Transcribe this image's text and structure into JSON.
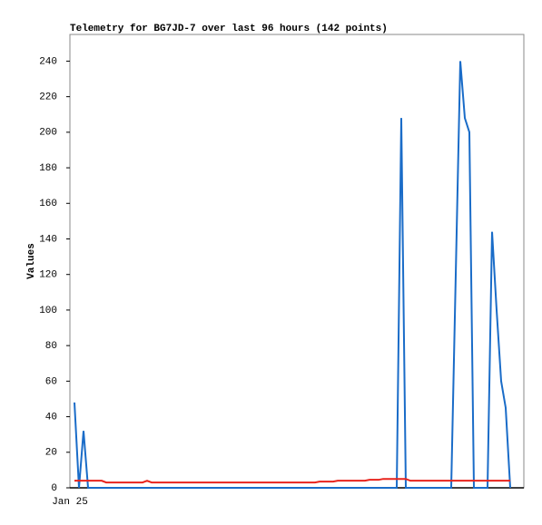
{
  "chart_data": {
    "type": "line",
    "title": "Telemetry for BG7JD-7 over last 96 hours (142 points)",
    "y_label": "Values",
    "categories": [
      "Jan 25",
      null,
      null,
      null,
      null,
      null,
      null,
      null,
      null,
      null,
      null,
      null,
      null,
      null,
      null,
      null,
      null,
      null,
      null,
      null,
      null,
      null,
      null,
      null,
      null,
      null,
      null,
      null,
      null,
      null,
      null,
      null,
      null,
      null,
      null,
      null,
      null,
      null,
      null,
      null,
      null,
      null,
      null,
      null,
      null,
      null,
      null,
      null,
      null,
      null,
      null,
      null,
      null,
      null,
      null,
      null,
      null,
      null,
      null,
      null,
      null,
      null,
      null,
      null,
      null,
      null,
      null,
      null,
      null,
      null,
      null,
      null,
      null,
      null,
      null,
      null,
      null,
      null,
      null,
      null,
      null,
      null,
      null,
      null,
      null,
      null,
      null,
      null,
      null,
      null,
      null,
      null,
      null,
      null,
      null,
      null,
      null,
      null,
      null,
      null,
      null
    ],
    "series": [
      {
        "color": "#1a6cc8",
        "values": [
          null,
          48,
          0,
          32,
          0,
          0,
          0,
          0,
          0,
          0,
          0,
          0,
          0,
          0,
          0,
          0,
          0,
          0,
          0,
          0,
          0,
          0,
          0,
          0,
          0,
          0,
          0,
          0,
          0,
          0,
          0,
          0,
          0,
          0,
          0,
          0,
          0,
          0,
          0,
          0,
          0,
          0,
          0,
          0,
          0,
          0,
          0,
          0,
          0,
          0,
          0,
          0,
          0,
          0,
          0,
          0,
          0,
          0,
          0,
          0,
          0,
          0,
          0,
          0,
          0,
          0,
          0,
          0,
          0,
          0,
          0,
          0,
          0,
          208,
          0,
          0,
          0,
          0,
          0,
          0,
          0,
          0,
          0,
          0,
          0,
          120,
          240,
          208,
          200,
          0,
          0,
          0,
          0,
          144,
          100,
          60,
          45,
          0,
          null,
          null,
          null
        ]
      },
      {
        "color": "#e8231c",
        "values": [
          null,
          4,
          4,
          4,
          4,
          4,
          4,
          4,
          3,
          3,
          3,
          3,
          3,
          3,
          3,
          3,
          3,
          4,
          3,
          3,
          3,
          3,
          3,
          3,
          3,
          3,
          3,
          3,
          3,
          3,
          3,
          3,
          3,
          3,
          3,
          3,
          3,
          3,
          3,
          3,
          3,
          3,
          3,
          3,
          3,
          3,
          3,
          3,
          3,
          3,
          3,
          3,
          3,
          3,
          3,
          3.5,
          3.5,
          3.5,
          3.5,
          4,
          4,
          4,
          4,
          4,
          4,
          4,
          4.5,
          4.5,
          4.5,
          5,
          5,
          5,
          5,
          5,
          5,
          4,
          4,
          4,
          4,
          4,
          4,
          4,
          4,
          4,
          4,
          4,
          4,
          4,
          4,
          4,
          4,
          4,
          4,
          4,
          4,
          4,
          4,
          4,
          null,
          null,
          null
        ]
      }
    ],
    "ylim": [
      0,
      255
    ],
    "yticks": [
      0,
      20,
      40,
      60,
      80,
      100,
      120,
      140,
      160,
      180,
      200,
      220,
      240
    ],
    "grid": false
  }
}
